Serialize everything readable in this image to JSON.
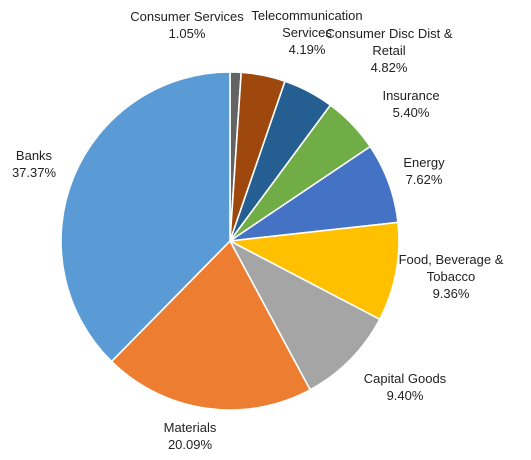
{
  "chart_data": {
    "type": "pie",
    "title": "",
    "start": "12 o'clock, clockwise",
    "slices": [
      {
        "label": [
          "Consumer Services"
        ],
        "value": 1.05,
        "value_label": "1.05%",
        "color": "#636363"
      },
      {
        "label": [
          "Telecommunication",
          "Services"
        ],
        "value": 4.19,
        "value_label": "4.19%",
        "color": "#9e480e"
      },
      {
        "label": [
          "Consumer Disc Dist &",
          "Retail"
        ],
        "value": 4.82,
        "value_label": "4.82%",
        "color": "#255e91"
      },
      {
        "label": [
          "Insurance"
        ],
        "value": 5.4,
        "value_label": "5.40%",
        "color": "#70ad47"
      },
      {
        "label": [
          "Energy"
        ],
        "value": 7.62,
        "value_label": "7.62%",
        "color": "#4472c4"
      },
      {
        "label": [
          "Food, Beverage &",
          "Tobacco"
        ],
        "value": 9.36,
        "value_label": "9.36%",
        "color": "#ffc000"
      },
      {
        "label": [
          "Capital Goods"
        ],
        "value": 9.4,
        "value_label": "9.40%",
        "color": "#a5a5a5"
      },
      {
        "label": [
          "Materials"
        ],
        "value": 20.09,
        "value_label": "20.09%",
        "color": "#ed7d31"
      },
      {
        "label": [
          "Banks"
        ],
        "value": 37.37,
        "value_label": "37.37%",
        "color": "#5b9bd5"
      }
    ]
  }
}
